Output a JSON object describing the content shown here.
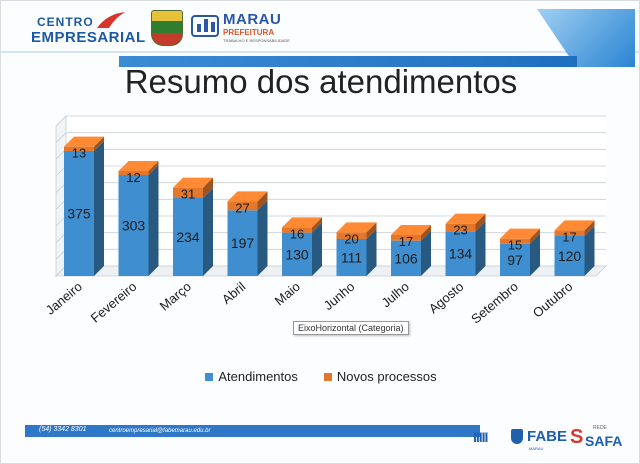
{
  "header": {
    "brand_line1": "CENTRO",
    "brand_line2": "EMPRESARIAL",
    "marau_title": "MARAU",
    "marau_subtitle": "PREFEITURA",
    "marau_tagline": "TRABALHO E RESPONSABILIDADE"
  },
  "slide_title": "Resumo dos atendimentos",
  "tooltip": "EixoHorizontal (Categoria)",
  "colors": {
    "atendimentos": "#3f8fd0",
    "novos_processos": "#e3782c",
    "grid": "#c9cfd6",
    "header_blue": "#2f78c8"
  },
  "chart_data": {
    "type": "bar",
    "stacked": true,
    "three_d": true,
    "categories": [
      "Janeiro",
      "Fevereiro",
      "Março",
      "Abril",
      "Maio",
      "Junho",
      "Julho",
      "Agosto",
      "Setembro",
      "Outubro"
    ],
    "series": [
      {
        "name": "Atendimentos",
        "values": [
          375,
          303,
          234,
          197,
          130,
          111,
          106,
          134,
          97,
          120
        ]
      },
      {
        "name": "Novos processos",
        "values": [
          13,
          12,
          31,
          27,
          16,
          20,
          17,
          23,
          15,
          17
        ]
      }
    ],
    "ylim": [
      0,
      450
    ],
    "gridlines": [
      0,
      50,
      100,
      150,
      200,
      250,
      300,
      350,
      400,
      450
    ],
    "grid": true,
    "legend_position": "bottom",
    "tooltip_on": "x-axis"
  },
  "legend": {
    "items": [
      {
        "label": "Atendimentos",
        "series": "atendimentos"
      },
      {
        "label": "Novos processos",
        "series": "novos_processos"
      }
    ]
  },
  "footer": {
    "phone": "(54) 3342 8301",
    "email": "centroempresarial@fabemarau.edu.br",
    "pipes": "IIIII",
    "fabe": "FABE",
    "fabe_sub": "MARAU",
    "safa_rede": "REDE",
    "safa": "SAFA"
  }
}
